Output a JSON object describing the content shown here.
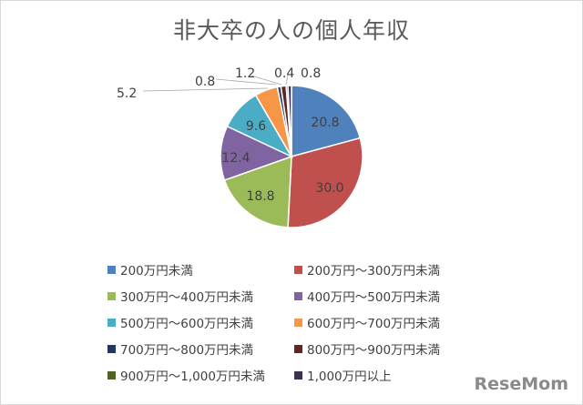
{
  "chart_data": {
    "type": "pie",
    "title": "非大卒の人の個人年収",
    "slices": [
      {
        "label": "200万円未満",
        "value": 20.8,
        "value_label": "20.8",
        "color": "#4f81bd"
      },
      {
        "label": "200万円～300万円未満",
        "value": 30.0,
        "value_label": "30.0",
        "color": "#c0504d"
      },
      {
        "label": "300万円～400万円未満",
        "value": 18.8,
        "value_label": "18.8",
        "color": "#9bbb59"
      },
      {
        "label": "400万円～500万円未満",
        "value": 12.4,
        "value_label": "12.4",
        "color": "#8064a2"
      },
      {
        "label": "500万円～600万円未満",
        "value": 9.6,
        "value_label": "9.6",
        "color": "#4bacc6"
      },
      {
        "label": "600万円～700万円未満",
        "value": 5.2,
        "value_label": "5.2",
        "color": "#f79646"
      },
      {
        "label": "700万円～800万円未満",
        "value": 0.8,
        "value_label": "0.8",
        "color": "#1f3864"
      },
      {
        "label": "800万円～900万円未満",
        "value": 1.2,
        "value_label": "1.2",
        "color": "#632523"
      },
      {
        "label": "900万円～1,000万円未満",
        "value": 0.4,
        "value_label": "0.4",
        "color": "#4f6228"
      },
      {
        "label": "1,000万円以上",
        "value": 0.8,
        "value_label": "0.8",
        "color": "#3f3151"
      }
    ],
    "legend_position": "bottom"
  },
  "watermark": "ReseMom"
}
